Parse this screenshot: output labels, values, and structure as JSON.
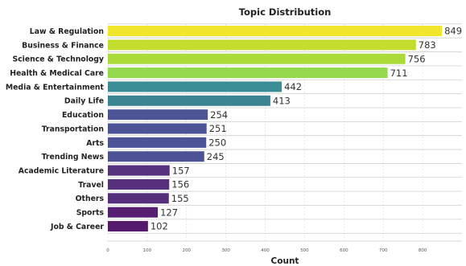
{
  "chart_data": {
    "type": "bar",
    "orientation": "horizontal",
    "title": "Topic Distribution",
    "xlabel": "Count",
    "ylabel": "",
    "xlim": [
      0,
      900
    ],
    "x_ticks": [
      0,
      100,
      200,
      300,
      400,
      500,
      600,
      700,
      800
    ],
    "grid": true,
    "categories": [
      "Law & Regulation",
      "Business & Finance",
      "Science & Technology",
      "Health & Medical Care",
      "Media & Entertainment",
      "Daily Life",
      "Education",
      "Transportation",
      "Arts",
      "Trending News",
      "Academic Literature",
      "Travel",
      "Others",
      "Sports",
      "Job & Career"
    ],
    "values": [
      849,
      783,
      756,
      711,
      442,
      413,
      254,
      251,
      250,
      245,
      157,
      156,
      155,
      127,
      102
    ],
    "colors": [
      "#f2e62c",
      "#c3de2e",
      "#abdb38",
      "#94d84c",
      "#3a8d95",
      "#3b8494",
      "#4e5597",
      "#4c5396",
      "#4c5396",
      "#4d5294",
      "#56317d",
      "#56307d",
      "#552f7c",
      "#561f72",
      "#541b6c"
    ]
  }
}
